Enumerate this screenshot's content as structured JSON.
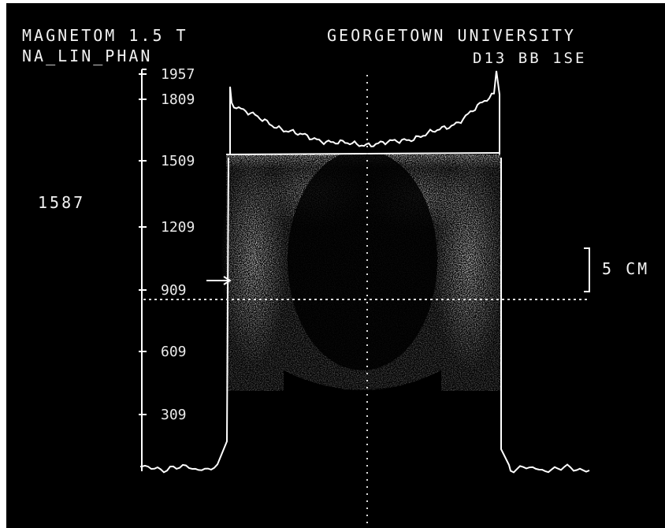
{
  "header": {
    "scanner": "MAGNETOM 1.5 T",
    "institution": "GEORGETOWN UNIVERSITY",
    "study": "NA_LIN_PHAN",
    "series": "D13 BB   1SE"
  },
  "side_value": "1587",
  "scale_bar_label": "5 CM",
  "axis_ticks": [
    "1957",
    "1809",
    "1509",
    "1209",
    "909",
    "609",
    "309"
  ],
  "colors": {
    "screen": "#000000",
    "trace": "#ffffff"
  }
}
